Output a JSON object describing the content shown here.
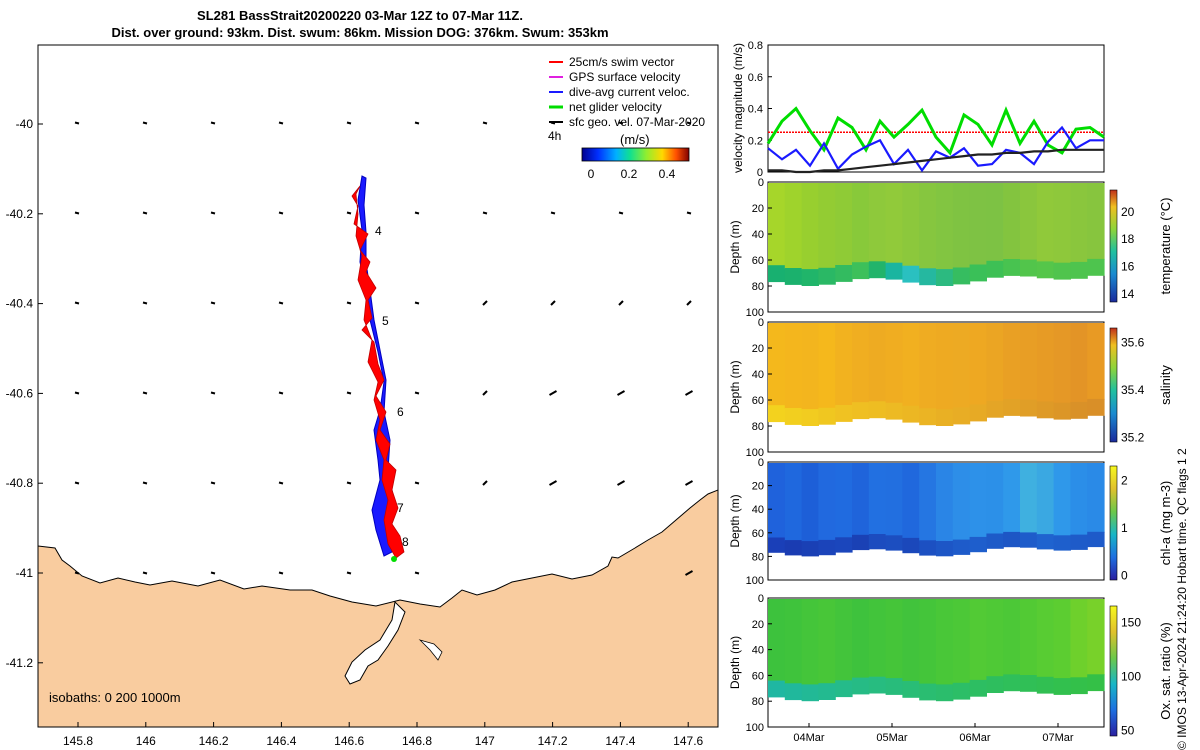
{
  "header": {
    "title_line1": "SL281 BassStrait20200220 03-Mar 12Z to 07-Mar 11Z.",
    "title_line2": "Dist. over ground: 93km. Dist. swum: 86km. Mission DOG: 376km. Swum: 353km"
  },
  "colors": {
    "land": "#f9cc9f",
    "swim": "#ff0000",
    "gps": "#e020e0",
    "current": "#1a1aff",
    "net": "#00dd00",
    "geo": "#000000"
  },
  "map": {
    "legend": [
      {
        "label": "25cm/s swim vector",
        "color": "#ff0000"
      },
      {
        "label": "GPS surface velocity",
        "color": "#e020e0"
      },
      {
        "label": "dive-avg current veloc.",
        "color": "#1a1aff"
      },
      {
        "label": "net glider velocity",
        "color": "#00dd00"
      },
      {
        "label": "sfc geo. vel. 07-Mar-2020",
        "color": "#000000"
      }
    ],
    "interval_label": "4h",
    "colorbar_unit": "(m/s)",
    "colorbar_ticks": [
      "0",
      "0.2",
      "0.4"
    ],
    "isobaths_label": "isobaths: 0   200  1000m",
    "day_markers": [
      "4",
      "5",
      "6",
      "7",
      "8"
    ],
    "x_ticks": [
      "145.8",
      "146",
      "146.2",
      "146.4",
      "146.6",
      "146.8",
      "147",
      "147.2",
      "147.4",
      "147.6"
    ],
    "y_ticks": [
      "-40",
      "-40.2",
      "-40.4",
      "-40.6",
      "-40.8",
      "-41",
      "-41.2"
    ]
  },
  "chart_data": [
    {
      "type": "line",
      "ylabel": "velocity magnitude (m/s)",
      "ylim": [
        0,
        0.8
      ],
      "y_ticks": [
        "0",
        "0.2",
        "0.4",
        "0.6",
        "0.8"
      ],
      "series": [
        {
          "color": "#ff0000",
          "values": [
            0.25,
            0.25,
            0.25,
            0.25,
            0.25,
            0.25,
            0.25,
            0.25,
            0.25,
            0.25,
            0.25,
            0.25,
            0.25,
            0.25,
            0.25,
            0.25,
            0.25,
            0.25,
            0.25,
            0.25,
            0.25,
            0.25,
            0.25,
            0.25,
            0.25
          ]
        },
        {
          "color": "#00dd00",
          "values": [
            0.18,
            0.32,
            0.4,
            0.26,
            0.14,
            0.34,
            0.28,
            0.14,
            0.32,
            0.22,
            0.3,
            0.39,
            0.22,
            0.12,
            0.36,
            0.3,
            0.17,
            0.39,
            0.18,
            0.32,
            0.17,
            0.12,
            0.27,
            0.28,
            0.22
          ]
        },
        {
          "color": "#1a1aff",
          "values": [
            0.15,
            0.08,
            0.14,
            0.04,
            0.18,
            0.02,
            0.11,
            0.16,
            0.2,
            0.05,
            0.14,
            0.01,
            0.13,
            0.09,
            0.15,
            0.04,
            0.05,
            0.14,
            0.12,
            0.05,
            0.19,
            0.28,
            0.15,
            0.2,
            0.2
          ]
        },
        {
          "color": "#222222",
          "values": [
            0.01,
            0.01,
            0.0,
            0.0,
            0.01,
            0.01,
            0.02,
            0.03,
            0.04,
            0.05,
            0.06,
            0.07,
            0.08,
            0.09,
            0.1,
            0.11,
            0.11,
            0.12,
            0.12,
            0.13,
            0.13,
            0.14,
            0.14,
            0.14,
            0.14
          ]
        }
      ]
    },
    {
      "type": "heatmap",
      "ylabel": "Depth (m)",
      "cbar_label": "temperature (°C)",
      "cbar_ticks": [
        "14",
        "16",
        "18",
        "20"
      ],
      "y_ticks": [
        "0",
        "20",
        "40",
        "60",
        "80",
        "100"
      ],
      "profile_colors": [
        "#a6d62a",
        "#9fd32c",
        "#98cf2f",
        "#93cc33",
        "#8fcb36",
        "#88c93a",
        "#8ec93b",
        "#91ca3a",
        "#8cc83c",
        "#86c63f",
        "#82c541",
        "#7fc342",
        "#7ec244",
        "#7dc244",
        "#83c43f",
        "#8ac63d",
        "#90c93a",
        "#8ec83b",
        "#8ac63d",
        "#87c53e"
      ],
      "bottom_colors": [
        "#18b070",
        "#1bb16d",
        "#20b56a",
        "#2ab865",
        "#33bb60",
        "#3dc05a",
        "#22b46b",
        "#1ab5a0",
        "#2ac0c0",
        "#25b8a0",
        "#2cba80",
        "#36bd60",
        "#3ac058",
        "#3dc055",
        "#48c350",
        "#52c54b",
        "#55c64a",
        "#50c44d",
        "#4ec44e",
        "#4ec44e"
      ]
    },
    {
      "type": "heatmap",
      "ylabel": "Depth (m)",
      "cbar_label": "salinity",
      "cbar_ticks": [
        "35.2",
        "35.4",
        "35.6"
      ],
      "y_ticks": [
        "0",
        "20",
        "40",
        "60",
        "80",
        "100"
      ],
      "profile_colors": [
        "#f4b81c",
        "#f4b61d",
        "#f3b51e",
        "#f5b81c",
        "#f2b21f",
        "#f0ae21",
        "#eeab22",
        "#f0ad21",
        "#f1b020",
        "#efac22",
        "#eeaa22",
        "#edaa23",
        "#eea822",
        "#eba523",
        "#e9a024",
        "#e89e25",
        "#e79b25",
        "#e59826",
        "#e39426",
        "#e89a24"
      ],
      "bottom_colors": [
        "#f3d21e",
        "#f2cf1f",
        "#f2cc20",
        "#f0c720",
        "#f0c222",
        "#efbf22",
        "#eebd22",
        "#edba23",
        "#ecb723",
        "#ebb424",
        "#e9b024",
        "#e8ad25",
        "#e7aa25",
        "#e4a526",
        "#e2a226",
        "#e09e27",
        "#de9a27",
        "#dc9627",
        "#d99128",
        "#d98f28"
      ]
    },
    {
      "type": "heatmap",
      "ylabel": "Depth (m)",
      "cbar_label": "chl-a (mg m-3)",
      "cbar_ticks": [
        "0",
        "1",
        "2"
      ],
      "y_ticks": [
        "0",
        "20",
        "40",
        "60",
        "80",
        "100"
      ],
      "profile_colors": [
        "#1f62dc",
        "#1f68de",
        "#1d5fd8",
        "#2169df",
        "#206be0",
        "#1f64db",
        "#2270e1",
        "#226fe0",
        "#2068dd",
        "#2576e2",
        "#2a85e6",
        "#2d8ee8",
        "#2d91e9",
        "#2c90e8",
        "#2f99ea",
        "#3fb0e0",
        "#3aa8e2",
        "#2f98ea",
        "#2b8ee8",
        "#2a8ae7"
      ],
      "bottom_colors": [
        "#1a3fb8",
        "#1a3cb2",
        "#1a40b5",
        "#1b44ba",
        "#1b46bc",
        "#1a41b5",
        "#1c4cbf",
        "#1c4ec0",
        "#1b48bb",
        "#1c50c2",
        "#1d56c6",
        "#1e5bca",
        "#1e5ecc",
        "#1d5ac8",
        "#1d56c5",
        "#1e5cca",
        "#1f63cf",
        "#1e5fcc",
        "#1e5bc9",
        "#1e5ac9"
      ]
    },
    {
      "type": "heatmap",
      "ylabel": "Depth (m)",
      "cbar_label": "Ox. sat. ratio (%)",
      "cbar_ticks": [
        "50",
        "100",
        "150"
      ],
      "y_ticks": [
        "0",
        "20",
        "40",
        "60",
        "80",
        "100"
      ],
      "profile_colors": [
        "#3dc23d",
        "#3fc33c",
        "#44c53a",
        "#48c638",
        "#43c43b",
        "#3ec23d",
        "#42c43b",
        "#45c539",
        "#41c33c",
        "#44c53a",
        "#49c738",
        "#4cc837",
        "#52ca35",
        "#4fc936",
        "#4cc837",
        "#52ca34",
        "#58cc33",
        "#5ccd31",
        "#6ed02c",
        "#78d12a"
      ],
      "bottom_colors": [
        "#1fb7a2",
        "#20b89c",
        "#22b996",
        "#23ba90",
        "#25bb8a",
        "#26bb85",
        "#27bc80",
        "#28bc7b",
        "#29bd76",
        "#2abd71",
        "#2bbd6c",
        "#2cbe67",
        "#2dbe62",
        "#2ebe5e",
        "#2fbf5a",
        "#30bf56",
        "#31bf52",
        "#32c04e",
        "#33c04a",
        "#34c047"
      ]
    }
  ],
  "time_axis": {
    "ticks": [
      "04Mar",
      "05Mar",
      "06Mar",
      "07Mar"
    ]
  },
  "footer": {
    "credit": "© IMOS 13-Apr-2024 21:24:20 Hobart time. QC flags 1  2"
  }
}
